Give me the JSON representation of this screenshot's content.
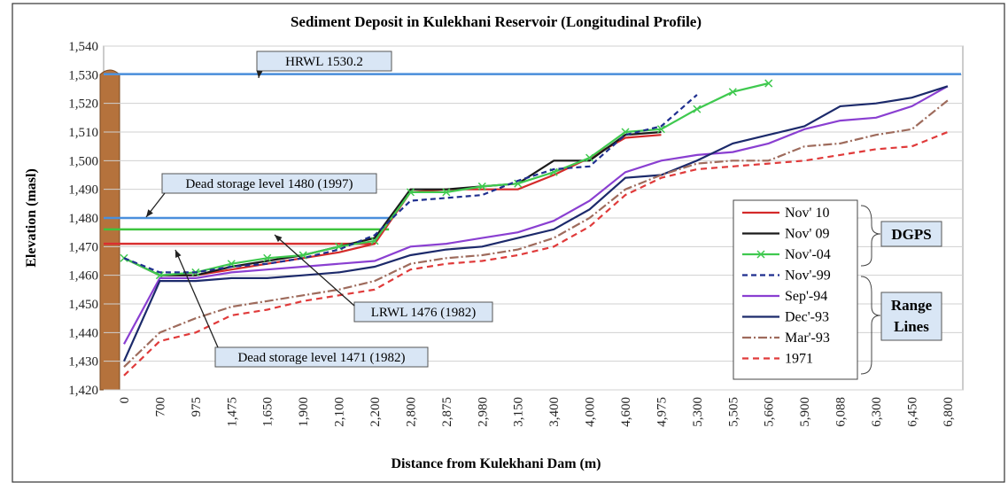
{
  "chart_data": {
    "type": "line",
    "title": "Sediment Deposit in Kulekhani Reservoir (Longitudinal Profile)",
    "x_label": "Distance from Kulekhani Dam (m)",
    "y_label": "Elevation (masl)",
    "categories": [
      "0",
      "700",
      "975",
      "1,475",
      "1,650",
      "1,900",
      "2,100",
      "2,200",
      "2,800",
      "2,875",
      "2,980",
      "3,150",
      "3,400",
      "4,000",
      "4,600",
      "4,975",
      "5,300",
      "5,505",
      "5,660",
      "5,900",
      "6,088",
      "6,300",
      "6,450",
      "6,800"
    ],
    "ylim": [
      1420,
      1540
    ],
    "yticks": [
      {
        "value": 1420,
        "label": "1,420"
      },
      {
        "value": 1430,
        "label": "1,430"
      },
      {
        "value": 1440,
        "label": "1,440"
      },
      {
        "value": 1450,
        "label": "1,450"
      },
      {
        "value": 1460,
        "label": "1,460"
      },
      {
        "value": 1470,
        "label": "1,470"
      },
      {
        "value": 1480,
        "label": "1,480"
      },
      {
        "value": 1490,
        "label": "1,490"
      },
      {
        "value": 1500,
        "label": "1,500"
      },
      {
        "value": 1510,
        "label": "1,510"
      },
      {
        "value": 1520,
        "label": "1,520"
      },
      {
        "value": 1530,
        "label": "1,530"
      },
      {
        "value": 1540,
        "label": "1,540"
      }
    ],
    "grid": true,
    "series": [
      {
        "name": "Nov' 10",
        "color": "#d42a2a",
        "values": [
          1466,
          1460,
          1460,
          1462,
          1464,
          1466,
          1468,
          1471,
          1489,
          1490,
          1490,
          1490,
          1495,
          1501,
          1508,
          1509,
          null,
          null,
          null,
          null,
          null,
          null,
          null,
          null
        ]
      },
      {
        "name": "Nov' 09",
        "color": "#1a1a1a",
        "values": [
          1466,
          1460,
          1460,
          1463,
          1465,
          1467,
          1470,
          1473,
          1490,
          1490,
          1491,
          1492,
          1500,
          1500,
          1509,
          1510,
          null,
          null,
          null,
          null,
          null,
          null,
          null,
          null
        ]
      },
      {
        "name": "Nov'-04",
        "color": "#3fc94f",
        "marker": "x",
        "values": [
          1466,
          1460,
          1461,
          1464,
          1466,
          1467,
          1470,
          1472,
          1489,
          1489,
          1491,
          1492,
          1496,
          1501,
          1510,
          1511,
          1518,
          1524,
          1527,
          null,
          null,
          null,
          null,
          null
        ]
      },
      {
        "name": "Nov'-99",
        "color": "#1f2f8f",
        "dash": "6,4",
        "values": [
          1466,
          1461,
          1461,
          1463,
          1464,
          1466,
          1469,
          1474,
          1486,
          1487,
          1488,
          1493,
          1497,
          1498,
          1509,
          1512,
          1523,
          null,
          null,
          null,
          null,
          null,
          null,
          null
        ]
      },
      {
        "name": "Sep'-94",
        "color": "#8a3fd1",
        "values": [
          1436,
          1459,
          1459,
          1461,
          1462,
          1463,
          1464,
          1465,
          1470,
          1471,
          1473,
          1475,
          1479,
          1486,
          1496,
          1500,
          1502,
          1503,
          1506,
          1511,
          1514,
          1515,
          1519,
          1526
        ]
      },
      {
        "name": "Dec'-93",
        "color": "#1c2a6b",
        "values": [
          1430,
          1458,
          1458,
          1459,
          1459,
          1460,
          1461,
          1463,
          1467,
          1469,
          1470,
          1473,
          1476,
          1483,
          1494,
          1495,
          1500,
          1506,
          1509,
          1512,
          1519,
          1520,
          1522,
          1526
        ]
      },
      {
        "name": "Mar'-93",
        "color": "#9e6b5c",
        "dash": "10,3,2,3",
        "values": [
          1428,
          1440,
          1445,
          1449,
          1451,
          1453,
          1455,
          1458,
          1464,
          1466,
          1467,
          1469,
          1473,
          1480,
          1490,
          1495,
          1499,
          1500,
          1500,
          1505,
          1506,
          1509,
          1511,
          1521
        ]
      },
      {
        "name": "1971",
        "color": "#e03a3a",
        "dash": "7,5",
        "values": [
          1425,
          1437,
          1440,
          1446,
          1448,
          1451,
          1453,
          1455,
          1462,
          1464,
          1465,
          1467,
          1470,
          1477,
          1488,
          1494,
          1497,
          1498,
          1499,
          1500,
          1502,
          1504,
          1505,
          1510
        ]
      }
    ],
    "reference_lines": [
      {
        "label": "HRWL 1530.2",
        "value": 1530.2,
        "color": "#4a8fdc"
      },
      {
        "label": "Dead storage level 1480 (1997)",
        "value": 1480,
        "color": "#4a8fdc"
      },
      {
        "label": "LRWL 1476 (1982)",
        "value": 1476,
        "color": "#3ec43e"
      },
      {
        "label": "Dead storage level 1471 (1982)",
        "value": 1471,
        "color": "#d93030"
      }
    ],
    "legend_groups": [
      [
        "DGPS"
      ],
      [
        "Range",
        "Lines"
      ]
    ]
  }
}
